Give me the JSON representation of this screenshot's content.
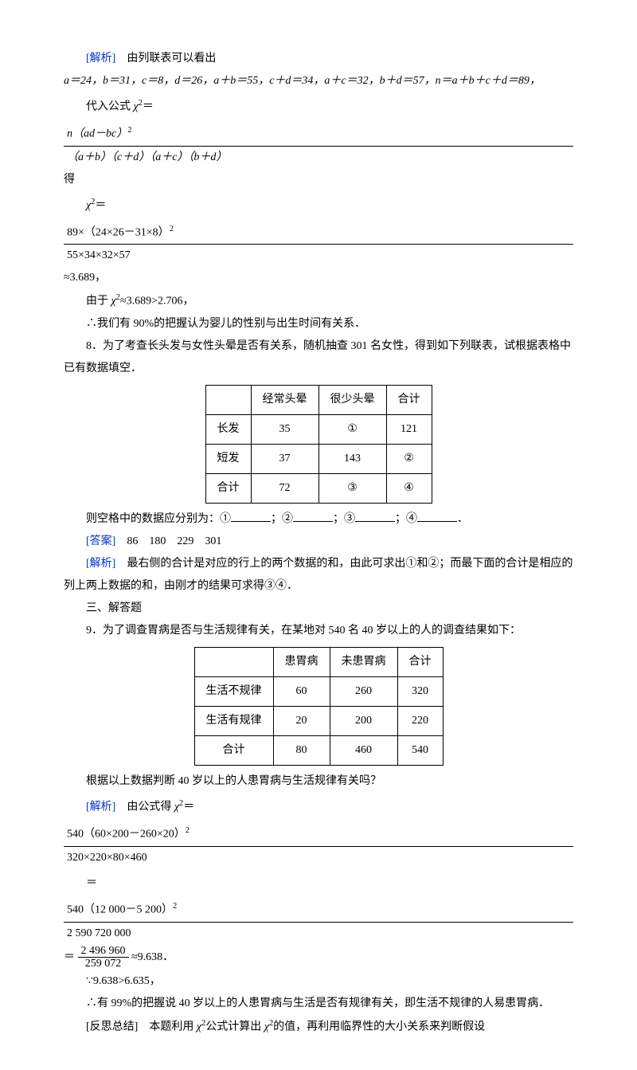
{
  "solution1": {
    "label": "[解析]",
    "intro": "由列联表可以看出",
    "vars": "a＝24，b＝31，c＝8，d＝26，a＋b＝55，c＋d＝34，a＋c＝32，b＋d＝57，n＝a＋b＋c＋d＝89，",
    "formula_prefix": "代入公式",
    "chi_var": "χ",
    "sq": "2",
    "main_frac_top": "n（ad－bc）",
    "main_frac_bot": "（a＋b）（c＋d）（a＋c）（b＋d）",
    "formula_suffix": "得",
    "calc_frac_top": "89×（24×26－31×8）",
    "calc_frac_bot": "55×34×32×57",
    "approx_val": "≈3.689，",
    "since": "由于",
    "since_chi": "χ",
    "since_val": "≈3.689>2.706，",
    "conclusion": "∴我们有 90%的把握认为婴儿的性别与出生时间有关系．"
  },
  "q8": {
    "text": "8．为了考查长头发与女性头晕是否有关系，随机抽查 301 名女性，得到如下列联表，试根据表格中已有数据填空．",
    "table": {
      "h1": "",
      "h2": "经常头晕",
      "h3": "很少头晕",
      "h4": "合计",
      "r1c1": "长发",
      "r1c2": "35",
      "r1c3": "①",
      "r1c4": "121",
      "r2c1": "短发",
      "r2c2": "37",
      "r2c3": "143",
      "r2c4": "②",
      "r3c1": "合计",
      "r3c2": "72",
      "r3c3": "③",
      "r3c4": "④"
    },
    "blanks_text": "则空格中的数据应分别为：①",
    "sep1": "；②",
    "sep2": "；③",
    "sep3": "；④",
    "end": "．",
    "answer_label": "[答案]",
    "answer_text": "86　180　229　301",
    "analysis_label": "[解析]",
    "analysis_text": "最右侧的合计是对应的行上的两个数据的和，由此可求出①和②；而最下面的合计是相应的列上两上数据的和，由刚才的结果可求得③④．"
  },
  "section3": "三、解答题",
  "q9": {
    "text": "9．为了调查胃病是否与生活规律有关，在某地对 540 名 40 岁以上的人的调查结果如下：",
    "table": {
      "h1": "",
      "h2": "患胃病",
      "h3": "未患胃病",
      "h4": "合计",
      "r1c1": "生活不规律",
      "r1c2": "60",
      "r1c3": "260",
      "r1c4": "320",
      "r2c1": "生活有规律",
      "r2c2": "20",
      "r2c3": "200",
      "r2c4": "220",
      "r3c1": "合计",
      "r3c2": "80",
      "r3c3": "460",
      "r3c4": "540"
    },
    "ask": "根据以上数据判断 40 岁以上的人患胃病与生活规律有关吗？",
    "analysis_label": "[解析]",
    "formula_prefix": "由公式得",
    "chi_var": "χ",
    "calc1_top": "540（60×200－260×20）",
    "calc1_bot": "320×220×80×460",
    "calc2_top": "540（12 000－5 200）",
    "calc2_bot": "2 590 720 000",
    "calc3_top": "2 496 960",
    "calc3_bot": "259 072",
    "approx": "≈9.638．",
    "cmp": "∵9.638>6.635，",
    "conclusion": "∴有 99%的把握说 40 岁以上的人患胃病与生活是否有规律有关，即生活不规律的人易患胃病．",
    "reflect_label": "[反思总结]",
    "reflect_text": "本题利用",
    "reflect_mid": "公式计算出",
    "reflect_end": "的值，再利用临界性的大小关系来判断假设"
  }
}
